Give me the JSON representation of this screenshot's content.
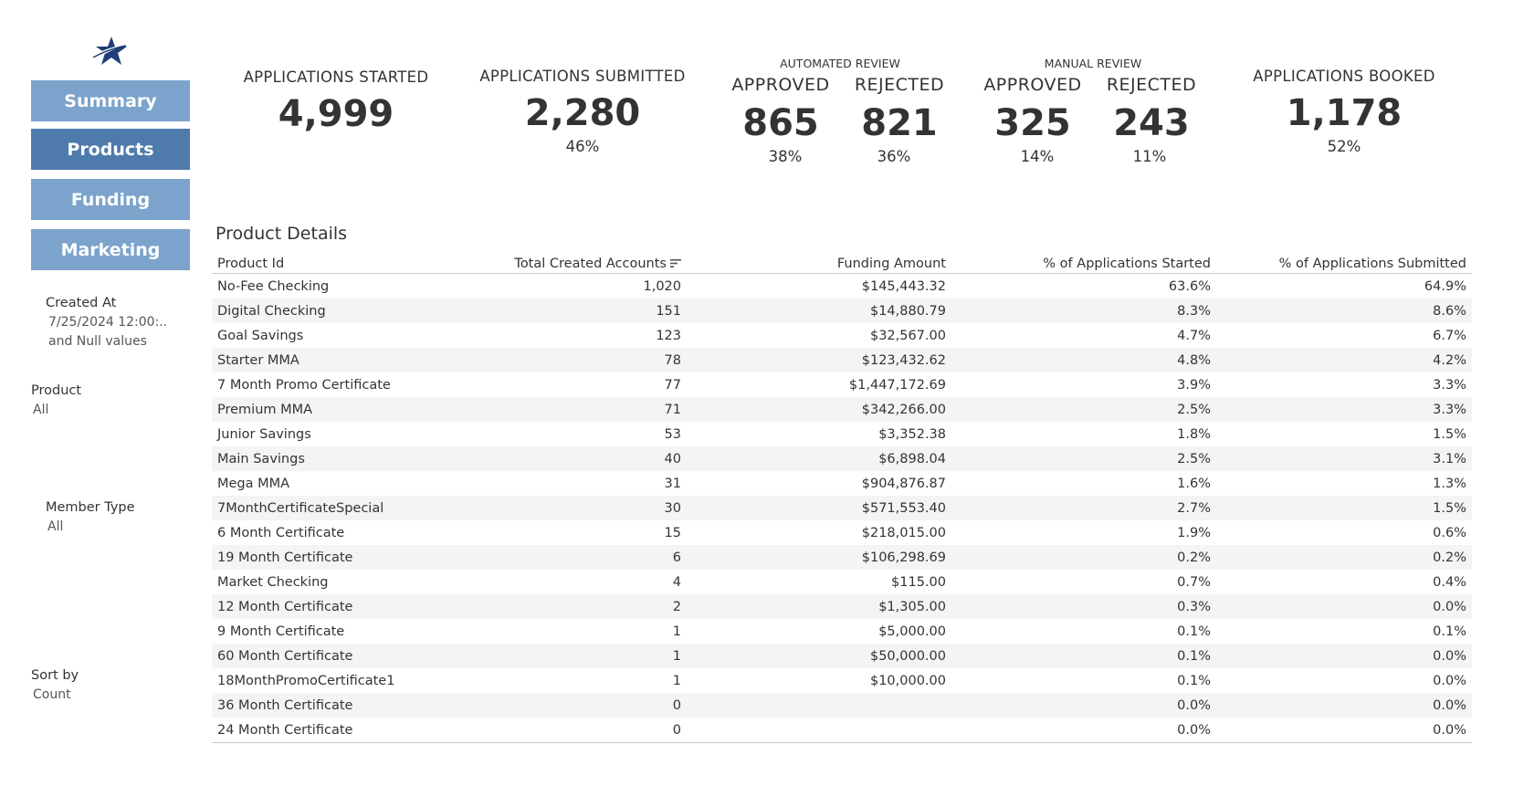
{
  "nav": {
    "items": [
      {
        "label": "Summary"
      },
      {
        "label": "Products"
      },
      {
        "label": "Funding"
      },
      {
        "label": "Marketing"
      }
    ],
    "active": "Products"
  },
  "filters": {
    "created_at": {
      "label": "Created At",
      "value": "7/25/2024 12:00:..",
      "value2": "and Null values"
    },
    "product": {
      "label": "Product",
      "value": "All"
    },
    "member_type": {
      "label": "Member Type",
      "value": "All"
    },
    "sort_by": {
      "label": "Sort by",
      "value": "Count"
    }
  },
  "kpis": {
    "started": {
      "label": "APPLICATIONS STARTED",
      "value": "4,999"
    },
    "submitted": {
      "label": "APPLICATIONS SUBMITTED",
      "value": "2,280",
      "pct": "46%"
    },
    "automated": {
      "label": "AUTOMATED REVIEW",
      "approved": {
        "label": "APPROVED",
        "value": "865",
        "pct": "38%"
      },
      "rejected": {
        "label": "REJECTED",
        "value": "821",
        "pct": "36%"
      }
    },
    "manual": {
      "label": "MANUAL REVIEW",
      "approved": {
        "label": "APPROVED",
        "value": "325",
        "pct": "14%"
      },
      "rejected": {
        "label": "REJECTED",
        "value": "243",
        "pct": "11%"
      }
    },
    "booked": {
      "label": "APPLICATIONS BOOKED",
      "value": "1,178",
      "pct": "52%"
    }
  },
  "table": {
    "title": "Product Details",
    "columns": [
      "Product Id",
      "Total Created Accounts",
      "Funding Amount",
      "% of Applications Started",
      "% of Applications Submitted"
    ],
    "rows": [
      [
        "No-Fee Checking",
        "1,020",
        "$145,443.32",
        "63.6%",
        "64.9%"
      ],
      [
        "Digital Checking",
        "151",
        "$14,880.79",
        "8.3%",
        "8.6%"
      ],
      [
        "Goal Savings",
        "123",
        "$32,567.00",
        "4.7%",
        "6.7%"
      ],
      [
        "Starter MMA",
        "78",
        "$123,432.62",
        "4.8%",
        "4.2%"
      ],
      [
        "7 Month Promo Certificate",
        "77",
        "$1,447,172.69",
        "3.9%",
        "3.3%"
      ],
      [
        "Premium MMA",
        "71",
        "$342,266.00",
        "2.5%",
        "3.3%"
      ],
      [
        "Junior Savings",
        "53",
        "$3,352.38",
        "1.8%",
        "1.5%"
      ],
      [
        "Main Savings",
        "40",
        "$6,898.04",
        "2.5%",
        "3.1%"
      ],
      [
        "Mega MMA",
        "31",
        "$904,876.87",
        "1.6%",
        "1.3%"
      ],
      [
        "7MonthCertificateSpecial",
        "30",
        "$571,553.40",
        "2.7%",
        "1.5%"
      ],
      [
        "6 Month Certificate",
        "15",
        "$218,015.00",
        "1.9%",
        "0.6%"
      ],
      [
        "19 Month Certificate",
        "6",
        "$106,298.69",
        "0.2%",
        "0.2%"
      ],
      [
        "Market Checking",
        "4",
        "$115.00",
        "0.7%",
        "0.4%"
      ],
      [
        "12 Month Certificate",
        "2",
        "$1,305.00",
        "0.3%",
        "0.0%"
      ],
      [
        "9 Month Certificate",
        "1",
        "$5,000.00",
        "0.1%",
        "0.1%"
      ],
      [
        "60 Month Certificate",
        "1",
        "$50,000.00",
        "0.1%",
        "0.0%"
      ],
      [
        "18MonthPromoCertificate1",
        "1",
        "$10,000.00",
        "0.1%",
        "0.0%"
      ],
      [
        "36 Month Certificate",
        "0",
        "",
        "0.0%",
        "0.0%"
      ],
      [
        "24 Month Certificate",
        "0",
        "",
        "0.0%",
        "0.0%"
      ]
    ]
  },
  "colors": {
    "nav_inactive": "#7ba3cc",
    "nav_active": "#4e7bab",
    "logo": "#1f3e7a"
  },
  "icons": {
    "logo": "star-logo-icon",
    "sort": "sort-descending-icon"
  }
}
